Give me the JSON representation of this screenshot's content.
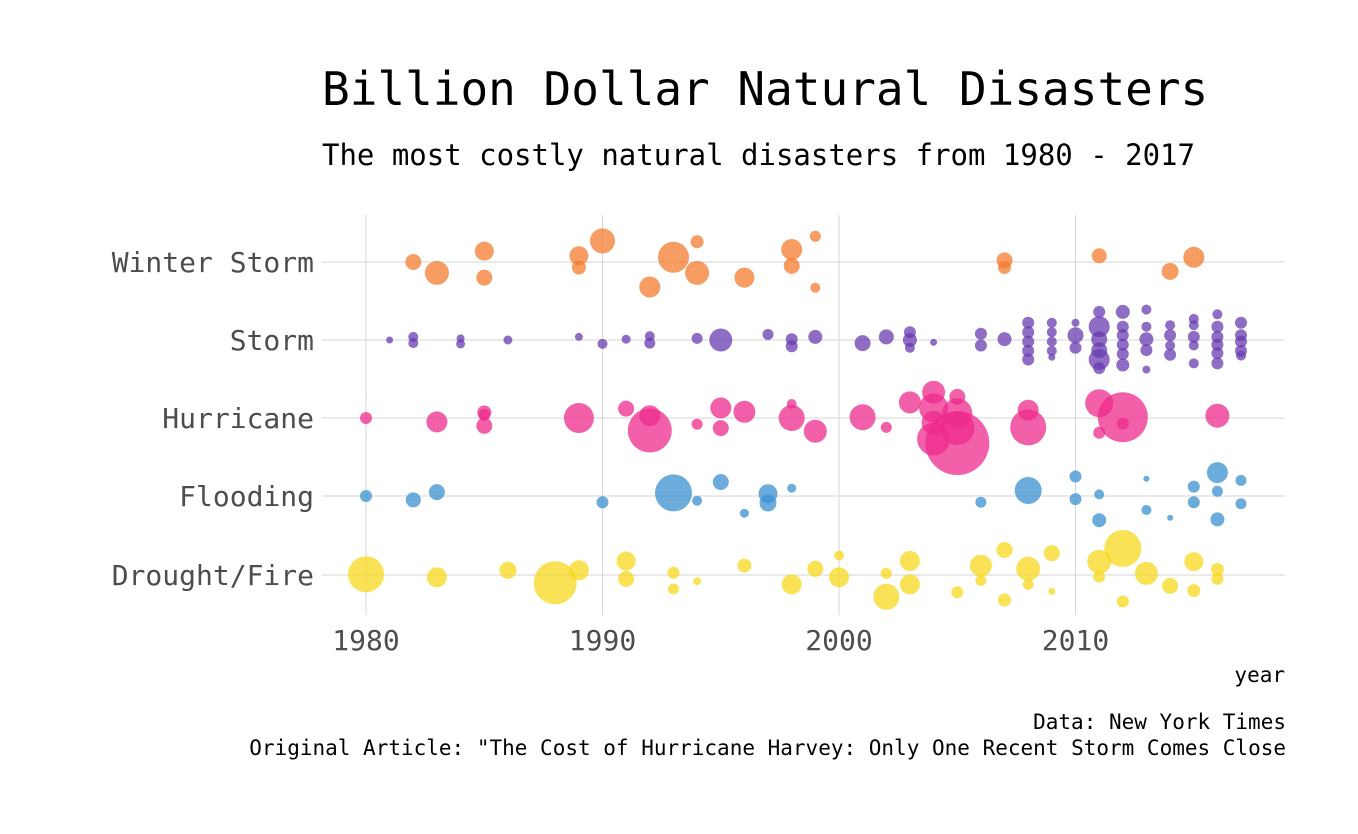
{
  "caption": {
    "data_source": "Data: New York Times",
    "original_article": "Original Article: \"The Cost of Hurricane Harvey: Only One Recent Storm Comes Close"
  },
  "chart_data": {
    "type": "scatter",
    "title": "Billion Dollar Natural Disasters",
    "subtitle": "The most costly natural disasters from 1980 - 2017",
    "xlabel": "year",
    "ylabel": "",
    "xlim": [
      1978.5,
      2018.5
    ],
    "x_ticks": [
      1980,
      1990,
      2000,
      2010
    ],
    "categories": [
      "Winter Storm",
      "Storm",
      "Hurricane",
      "Flooding",
      "Drought/Fire"
    ],
    "grid": true,
    "legend": "none",
    "colors": {
      "Winter Storm": "#f47b2e",
      "Storm": "#6a3cb0",
      "Hurricane": "#ee2b8c",
      "Flooding": "#3a90d0",
      "Drought/Fire": "#f7d81c"
    },
    "series": [
      {
        "category": "Winter Storm",
        "points": [
          [
            1982,
            0.0,
            1.6
          ],
          [
            1983,
            -0.14,
            2.4
          ],
          [
            1985,
            0.14,
            1.9
          ],
          [
            1985,
            -0.2,
            1.6
          ],
          [
            1989,
            0.08,
            1.9
          ],
          [
            1989,
            -0.07,
            1.4
          ],
          [
            1990,
            0.27,
            2.5
          ],
          [
            1992,
            -0.32,
            2.1
          ],
          [
            1993,
            0.06,
            3.1
          ],
          [
            1994,
            0.26,
            1.3
          ],
          [
            1994,
            -0.14,
            2.4
          ],
          [
            1996,
            -0.2,
            2.0
          ],
          [
            1998,
            0.16,
            2.1
          ],
          [
            1998,
            -0.05,
            1.6
          ],
          [
            1999,
            0.33,
            1.1
          ],
          [
            1999,
            -0.33,
            1.0
          ],
          [
            2007,
            0.02,
            1.6
          ],
          [
            2007,
            -0.07,
            1.3
          ],
          [
            2011,
            0.08,
            1.5
          ],
          [
            2014,
            -0.12,
            1.7
          ],
          [
            2015,
            0.06,
            2.1
          ]
        ]
      },
      {
        "category": "Storm",
        "points": [
          [
            1981,
            0.0,
            0.7
          ],
          [
            1982,
            0.04,
            1.0
          ],
          [
            1982,
            -0.04,
            1.0
          ],
          [
            1984,
            0.02,
            0.8
          ],
          [
            1984,
            -0.05,
            0.9
          ],
          [
            1986,
            0.0,
            0.9
          ],
          [
            1989,
            0.04,
            0.8
          ],
          [
            1990,
            -0.05,
            1.0
          ],
          [
            1991,
            0.01,
            0.9
          ],
          [
            1992,
            0.05,
            1.0
          ],
          [
            1992,
            -0.04,
            1.1
          ],
          [
            1994,
            0.02,
            1.1
          ],
          [
            1995,
            0.0,
            2.3
          ],
          [
            1997,
            0.07,
            1.1
          ],
          [
            1998,
            0.01,
            1.2
          ],
          [
            1998,
            -0.08,
            1.2
          ],
          [
            1999,
            0.04,
            1.4
          ],
          [
            2001,
            -0.04,
            1.6
          ],
          [
            2002,
            0.04,
            1.5
          ],
          [
            2003,
            0.1,
            1.2
          ],
          [
            2003,
            0.0,
            1.4
          ],
          [
            2003,
            -0.1,
            1.0
          ],
          [
            2004,
            -0.03,
            0.7
          ],
          [
            2006,
            0.08,
            1.2
          ],
          [
            2006,
            -0.07,
            1.2
          ],
          [
            2007,
            0.01,
            1.4
          ],
          [
            2008,
            0.22,
            1.2
          ],
          [
            2008,
            0.1,
            1.2
          ],
          [
            2008,
            -0.02,
            1.2
          ],
          [
            2008,
            -0.14,
            1.2
          ],
          [
            2008,
            -0.25,
            1.2
          ],
          [
            2009,
            0.22,
            1.0
          ],
          [
            2009,
            0.1,
            1.0
          ],
          [
            2009,
            -0.02,
            1.0
          ],
          [
            2009,
            -0.14,
            1.0
          ],
          [
            2009,
            -0.22,
            0.7
          ],
          [
            2010,
            0.22,
            0.8
          ],
          [
            2010,
            0.06,
            1.6
          ],
          [
            2010,
            -0.1,
            1.2
          ],
          [
            2011,
            0.36,
            1.2
          ],
          [
            2011,
            0.17,
            2.1
          ],
          [
            2011,
            0.01,
            1.6
          ],
          [
            2011,
            -0.13,
            1.6
          ],
          [
            2011,
            -0.25,
            2.1
          ],
          [
            2011,
            -0.36,
            1.2
          ],
          [
            2012,
            0.36,
            1.4
          ],
          [
            2012,
            0.17,
            1.2
          ],
          [
            2012,
            0.06,
            1.2
          ],
          [
            2012,
            -0.06,
            1.2
          ],
          [
            2012,
            -0.18,
            1.2
          ],
          [
            2012,
            -0.32,
            1.3
          ],
          [
            2013,
            0.39,
            1.0
          ],
          [
            2013,
            0.17,
            1.0
          ],
          [
            2013,
            0.01,
            1.4
          ],
          [
            2013,
            -0.13,
            1.2
          ],
          [
            2013,
            -0.38,
            0.8
          ],
          [
            2014,
            0.19,
            1.0
          ],
          [
            2014,
            0.06,
            1.2
          ],
          [
            2014,
            -0.07,
            1.0
          ],
          [
            2014,
            -0.19,
            1.2
          ],
          [
            2015,
            0.27,
            1.0
          ],
          [
            2015,
            0.19,
            1.0
          ],
          [
            2015,
            0.04,
            1.2
          ],
          [
            2015,
            -0.07,
            1.0
          ],
          [
            2015,
            -0.3,
            1.0
          ],
          [
            2016,
            0.33,
            1.0
          ],
          [
            2016,
            0.17,
            1.2
          ],
          [
            2016,
            0.04,
            1.2
          ],
          [
            2016,
            -0.06,
            1.2
          ],
          [
            2016,
            -0.17,
            1.2
          ],
          [
            2016,
            -0.3,
            1.2
          ],
          [
            2017,
            0.22,
            1.2
          ],
          [
            2017,
            0.06,
            1.2
          ],
          [
            2017,
            -0.02,
            1.2
          ],
          [
            2017,
            -0.14,
            1.2
          ],
          [
            2017,
            -0.2,
            1.0
          ]
        ]
      },
      {
        "category": "Hurricane",
        "points": [
          [
            1980,
            0.0,
            1.2
          ],
          [
            1983,
            -0.05,
            2.1
          ],
          [
            1985,
            0.07,
            1.4
          ],
          [
            1985,
            0.04,
            1.2
          ],
          [
            1985,
            -0.1,
            1.6
          ],
          [
            1989,
            0.0,
            3.0
          ],
          [
            1991,
            0.12,
            1.6
          ],
          [
            1992,
            0.03,
            2.1
          ],
          [
            1992,
            -0.16,
            4.4
          ],
          [
            1994,
            -0.08,
            1.1
          ],
          [
            1995,
            0.13,
            2.1
          ],
          [
            1995,
            -0.13,
            1.6
          ],
          [
            1996,
            0.08,
            2.2
          ],
          [
            1998,
            0.18,
            1.0
          ],
          [
            1998,
            0.0,
            2.6
          ],
          [
            1999,
            -0.17,
            2.3
          ],
          [
            2001,
            0.01,
            2.6
          ],
          [
            2002,
            -0.12,
            1.1
          ],
          [
            2003,
            0.2,
            2.2
          ],
          [
            2004,
            0.33,
            2.3
          ],
          [
            2004,
            0.13,
            2.9
          ],
          [
            2004,
            -0.06,
            2.4
          ],
          [
            2004,
            -0.27,
            3.3
          ],
          [
            2005,
            0.27,
            1.6
          ],
          [
            2005,
            0.06,
            3.0
          ],
          [
            2005,
            -0.13,
            3.4
          ],
          [
            2005,
            -0.32,
            6.4
          ],
          [
            2008,
            0.1,
            2.1
          ],
          [
            2008,
            -0.12,
            3.6
          ],
          [
            2011,
            0.19,
            2.8
          ],
          [
            2011,
            -0.19,
            1.2
          ],
          [
            2012,
            0.01,
            5.0
          ],
          [
            2012,
            -0.07,
            1.2
          ],
          [
            2016,
            0.03,
            2.4
          ]
        ]
      },
      {
        "category": "Flooding",
        "points": [
          [
            1980,
            0.0,
            1.2
          ],
          [
            1982,
            -0.05,
            1.5
          ],
          [
            1983,
            0.05,
            1.6
          ],
          [
            1990,
            -0.08,
            1.2
          ],
          [
            1993,
            0.04,
            3.7
          ],
          [
            1994,
            -0.06,
            1.0
          ],
          [
            1995,
            0.18,
            1.6
          ],
          [
            1996,
            -0.22,
            0.9
          ],
          [
            1997,
            0.03,
            1.9
          ],
          [
            1997,
            -0.09,
            1.7
          ],
          [
            1998,
            0.1,
            0.9
          ],
          [
            2006,
            -0.08,
            1.1
          ],
          [
            2008,
            0.07,
            2.7
          ],
          [
            2010,
            0.25,
            1.2
          ],
          [
            2010,
            -0.04,
            1.2
          ],
          [
            2011,
            0.02,
            1.0
          ],
          [
            2011,
            -0.31,
            1.4
          ],
          [
            2013,
            0.22,
            0.6
          ],
          [
            2013,
            -0.18,
            1.0
          ],
          [
            2014,
            -0.28,
            0.6
          ],
          [
            2015,
            0.12,
            1.2
          ],
          [
            2015,
            -0.08,
            1.2
          ],
          [
            2016,
            0.3,
            2.1
          ],
          [
            2016,
            0.06,
            1.1
          ],
          [
            2016,
            -0.3,
            1.4
          ],
          [
            2017,
            0.2,
            1.1
          ],
          [
            2017,
            -0.1,
            1.1
          ]
        ]
      },
      {
        "category": "Drought/Fire",
        "points": [
          [
            1980,
            0.01,
            3.6
          ],
          [
            1983,
            -0.03,
            2.0
          ],
          [
            1986,
            0.06,
            1.7
          ],
          [
            1988,
            -0.1,
            4.3
          ],
          [
            1989,
            0.06,
            2.0
          ],
          [
            1991,
            0.18,
            1.9
          ],
          [
            1991,
            -0.05,
            1.6
          ],
          [
            1993,
            0.03,
            1.2
          ],
          [
            1993,
            -0.18,
            1.1
          ],
          [
            1994,
            -0.08,
            0.8
          ],
          [
            1996,
            0.12,
            1.4
          ],
          [
            1998,
            -0.12,
            2.0
          ],
          [
            1999,
            0.08,
            1.6
          ],
          [
            2000,
            0.25,
            1.0
          ],
          [
            2000,
            -0.03,
            2.0
          ],
          [
            2002,
            0.02,
            1.1
          ],
          [
            2002,
            -0.28,
            2.6
          ],
          [
            2003,
            0.18,
            2.0
          ],
          [
            2003,
            -0.12,
            2.0
          ],
          [
            2005,
            -0.22,
            1.2
          ],
          [
            2006,
            0.12,
            2.2
          ],
          [
            2006,
            -0.07,
            1.1
          ],
          [
            2007,
            0.32,
            1.6
          ],
          [
            2007,
            -0.32,
            1.3
          ],
          [
            2008,
            0.08,
            2.4
          ],
          [
            2008,
            -0.12,
            1.1
          ],
          [
            2009,
            0.28,
            1.6
          ],
          [
            2009,
            -0.21,
            0.7
          ],
          [
            2011,
            0.17,
            2.4
          ],
          [
            2011,
            -0.02,
            1.2
          ],
          [
            2012,
            0.34,
            3.7
          ],
          [
            2012,
            -0.34,
            1.2
          ],
          [
            2013,
            0.02,
            2.3
          ],
          [
            2014,
            -0.14,
            1.6
          ],
          [
            2015,
            0.17,
            1.9
          ],
          [
            2015,
            -0.2,
            1.3
          ],
          [
            2016,
            0.07,
            1.3
          ],
          [
            2016,
            -0.05,
            1.2
          ]
        ]
      }
    ]
  }
}
